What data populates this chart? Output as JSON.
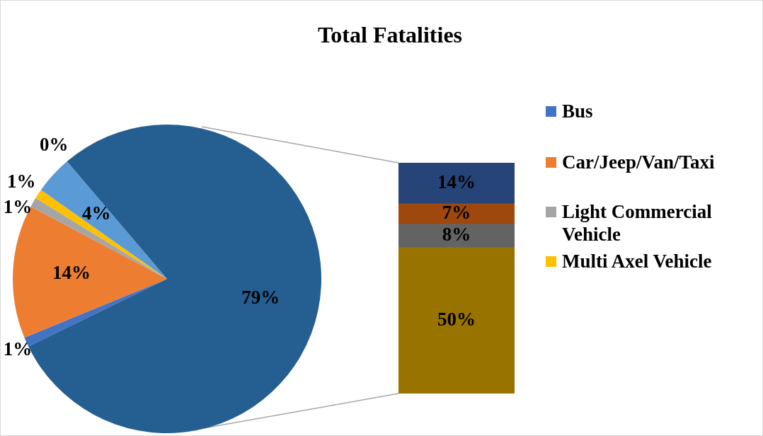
{
  "chart_data": [
    {
      "type": "pie",
      "title": "Total Fatalities",
      "categories": [
        "Bus",
        "Car/Jeep/Van/Taxi",
        "Light Commercial Vehicle",
        "Multi Axel Vehicle",
        null,
        null,
        null
      ],
      "values": [
        1,
        14,
        1,
        1,
        4,
        0,
        79
      ],
      "colors": [
        "#4472c4",
        "#ed7d31",
        "#a5a5a5",
        "#ffc000",
        "#5b9bd5",
        "#70ad47",
        "#255e91"
      ],
      "value_labels": [
        "1%",
        "14%",
        "1%",
        "1%",
        "4%",
        "0%",
        "79%"
      ],
      "legend": "right"
    },
    {
      "type": "bar",
      "stacked": true,
      "categories": [
        null
      ],
      "ylim": [
        0,
        79
      ],
      "tick_labels": false,
      "series": [
        {
          "color": "#997300",
          "values": [
            50
          ],
          "value_labels": [
            "50%"
          ]
        },
        {
          "color": "#636363",
          "values": [
            8
          ],
          "value_labels": [
            "8%"
          ]
        },
        {
          "color": "#9e480e",
          "values": [
            7
          ],
          "value_labels": [
            "7%"
          ]
        },
        {
          "color": "#264478",
          "values": [
            14
          ],
          "value_labels": [
            "14%"
          ]
        }
      ]
    }
  ]
}
